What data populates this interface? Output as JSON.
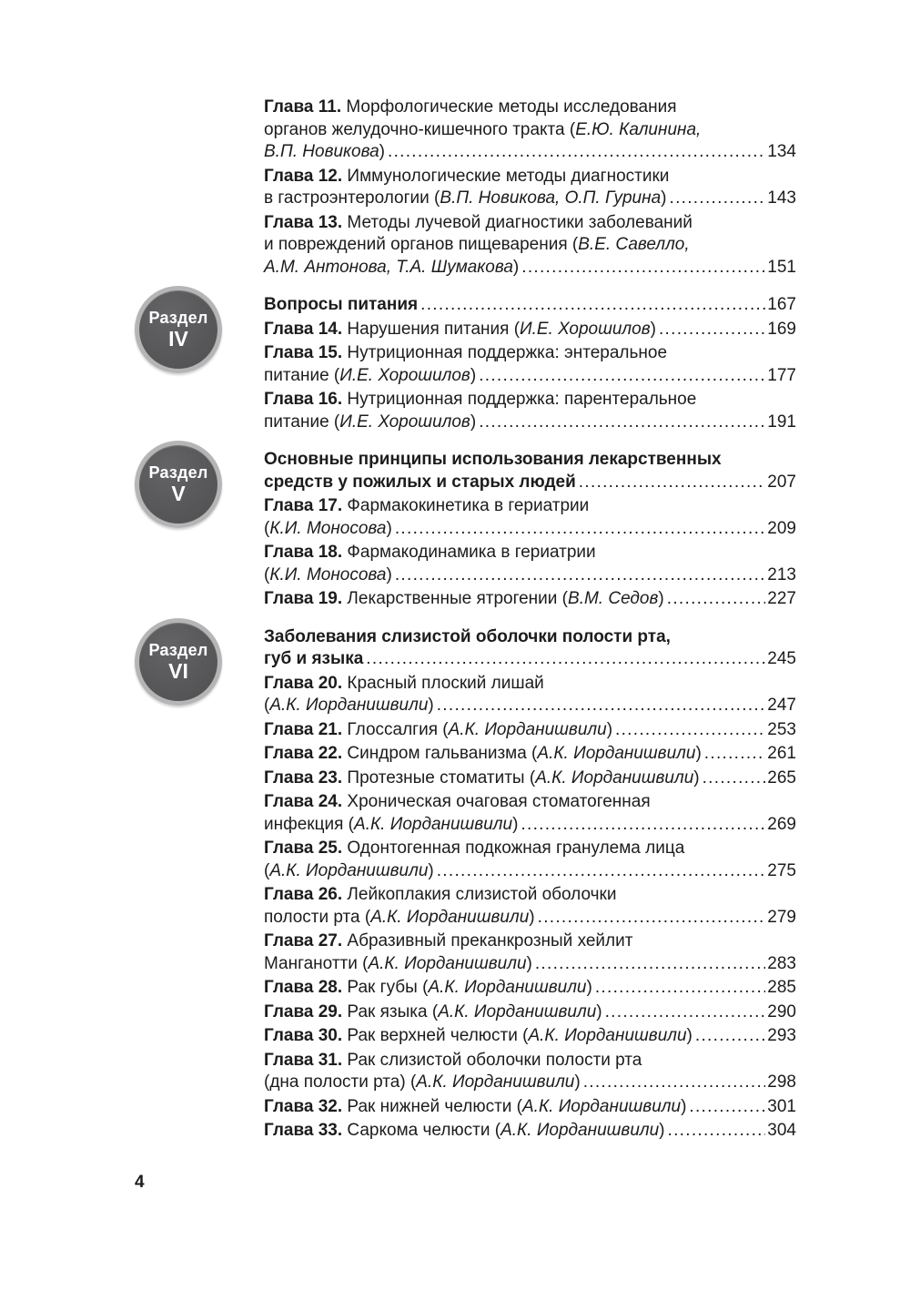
{
  "colors": {
    "text": "#1c1c1c",
    "badge_fill": "#58585a",
    "badge_ring": "#b5b5b6",
    "badge_text": "#ffffff",
    "background": "#ffffff"
  },
  "footer": {
    "page_number": "4"
  },
  "toc": {
    "entries": [
      {
        "page": "134",
        "lines": [
          {
            "segments": [
              {
                "style": "bold",
                "text": "Глава 11."
              },
              {
                "style": "regular",
                "text": " Морфологические методы исследования"
              }
            ]
          },
          {
            "segments": [
              {
                "style": "regular",
                "text": "органов желудочно-кишечного тракта ("
              },
              {
                "style": "italic",
                "text": "Е.Ю. Калинина,"
              }
            ]
          },
          {
            "segments": [
              {
                "style": "italic",
                "text": "В.П. Новикова"
              },
              {
                "style": "regular",
                "text": ")"
              }
            ]
          }
        ]
      },
      {
        "page": "143",
        "lines": [
          {
            "segments": [
              {
                "style": "bold",
                "text": "Глава 12."
              },
              {
                "style": "regular",
                "text": " Иммунологические методы диагностики"
              }
            ]
          },
          {
            "segments": [
              {
                "style": "regular",
                "text": "в гастроэнтерологии ("
              },
              {
                "style": "italic",
                "text": "В.П. Новикова, О.П. Гурина"
              },
              {
                "style": "regular",
                "text": ")"
              }
            ]
          }
        ]
      },
      {
        "page": "151",
        "lines": [
          {
            "segments": [
              {
                "style": "bold",
                "text": "Глава 13."
              },
              {
                "style": "regular",
                "text": " Методы лучевой диагностики заболеваний"
              }
            ]
          },
          {
            "segments": [
              {
                "style": "regular",
                "text": "и повреждений органов пищеварения ("
              },
              {
                "style": "italic",
                "text": "В.Е. Савелло,"
              }
            ]
          },
          {
            "segments": [
              {
                "style": "italic",
                "text": "А.М. Антонова, Т.А. Шумакова"
              },
              {
                "style": "regular",
                "text": ")"
              }
            ]
          }
        ]
      },
      {
        "page": "167",
        "section": {
          "label": "Раздел",
          "numeral": "IV"
        },
        "lines": [
          {
            "segments": [
              {
                "style": "bold",
                "text": "Вопросы питания"
              }
            ]
          }
        ]
      },
      {
        "page": "169",
        "lines": [
          {
            "segments": [
              {
                "style": "bold",
                "text": "Глава 14."
              },
              {
                "style": "regular",
                "text": " Нарушения питания ("
              },
              {
                "style": "italic",
                "text": "И.Е. Хорошилов"
              },
              {
                "style": "regular",
                "text": ")"
              }
            ]
          }
        ]
      },
      {
        "page": "177",
        "lines": [
          {
            "segments": [
              {
                "style": "bold",
                "text": "Глава 15."
              },
              {
                "style": "regular",
                "text": " Нутриционная поддержка: энтеральное"
              }
            ]
          },
          {
            "segments": [
              {
                "style": "regular",
                "text": "питание ("
              },
              {
                "style": "italic",
                "text": "И.Е. Хорошилов"
              },
              {
                "style": "regular",
                "text": ")"
              }
            ]
          }
        ]
      },
      {
        "page": "191",
        "lines": [
          {
            "segments": [
              {
                "style": "bold",
                "text": "Глава 16."
              },
              {
                "style": "regular",
                "text": " Нутриционная поддержка: парентеральное"
              }
            ]
          },
          {
            "segments": [
              {
                "style": "regular",
                "text": "питание ("
              },
              {
                "style": "italic",
                "text": "И.Е. Хорошилов"
              },
              {
                "style": "regular",
                "text": ")"
              }
            ]
          }
        ]
      },
      {
        "page": "207",
        "section": {
          "label": "Раздел",
          "numeral": "V"
        },
        "lines": [
          {
            "segments": [
              {
                "style": "bold",
                "text": "Основные принципы использования лекарственных"
              }
            ]
          },
          {
            "segments": [
              {
                "style": "bold",
                "text": "средств у пожилых и старых людей"
              }
            ]
          }
        ]
      },
      {
        "page": "209",
        "lines": [
          {
            "segments": [
              {
                "style": "bold",
                "text": "Глава 17."
              },
              {
                "style": "regular",
                "text": " Фармакокинетика в гериатрии"
              }
            ]
          },
          {
            "segments": [
              {
                "style": "regular",
                "text": "("
              },
              {
                "style": "italic",
                "text": "К.И. Моносова"
              },
              {
                "style": "regular",
                "text": ")"
              }
            ]
          }
        ]
      },
      {
        "page": "213",
        "lines": [
          {
            "segments": [
              {
                "style": "bold",
                "text": "Глава 18."
              },
              {
                "style": "regular",
                "text": " Фармакодинамика в гериатрии"
              }
            ]
          },
          {
            "segments": [
              {
                "style": "regular",
                "text": "("
              },
              {
                "style": "italic",
                "text": "К.И. Моносова"
              },
              {
                "style": "regular",
                "text": ")"
              }
            ]
          }
        ]
      },
      {
        "page": "227",
        "lines": [
          {
            "segments": [
              {
                "style": "bold",
                "text": "Глава 19."
              },
              {
                "style": "regular",
                "text": " Лекарственные ятрогении ("
              },
              {
                "style": "italic",
                "text": "В.М. Седов"
              },
              {
                "style": "regular",
                "text": ")"
              }
            ]
          }
        ]
      },
      {
        "page": "245",
        "section": {
          "label": "Раздел",
          "numeral": "VI"
        },
        "lines": [
          {
            "segments": [
              {
                "style": "bold",
                "text": "Заболевания слизистой оболочки полости рта,"
              }
            ]
          },
          {
            "segments": [
              {
                "style": "bold",
                "text": "губ и языка"
              }
            ]
          }
        ]
      },
      {
        "page": "247",
        "lines": [
          {
            "segments": [
              {
                "style": "bold",
                "text": "Глава 20."
              },
              {
                "style": "regular",
                "text": " Красный плоский лишай"
              }
            ]
          },
          {
            "segments": [
              {
                "style": "regular",
                "text": "("
              },
              {
                "style": "italic",
                "text": "А.К. Иорданишвили"
              },
              {
                "style": "regular",
                "text": ")"
              }
            ]
          }
        ]
      },
      {
        "page": "253",
        "lines": [
          {
            "segments": [
              {
                "style": "bold",
                "text": "Глава 21."
              },
              {
                "style": "regular",
                "text": " Глоссалгия ("
              },
              {
                "style": "italic",
                "text": "А.К. Иорданишвили"
              },
              {
                "style": "regular",
                "text": ")"
              }
            ]
          }
        ]
      },
      {
        "page": "261",
        "lines": [
          {
            "segments": [
              {
                "style": "bold",
                "text": "Глава 22."
              },
              {
                "style": "regular",
                "text": " Синдром гальванизма ("
              },
              {
                "style": "italic",
                "text": "А.К. Иорданишвили"
              },
              {
                "style": "regular",
                "text": ")"
              }
            ]
          }
        ]
      },
      {
        "page": "265",
        "lines": [
          {
            "segments": [
              {
                "style": "bold",
                "text": "Глава 23."
              },
              {
                "style": "regular",
                "text": " Протезные стоматиты ("
              },
              {
                "style": "italic",
                "text": "А.К. Иорданишвили"
              },
              {
                "style": "regular",
                "text": ")"
              }
            ]
          }
        ]
      },
      {
        "page": "269",
        "lines": [
          {
            "segments": [
              {
                "style": "bold",
                "text": "Глава 24."
              },
              {
                "style": "regular",
                "text": " Хроническая очаговая стоматогенная"
              }
            ]
          },
          {
            "segments": [
              {
                "style": "regular",
                "text": "инфекция ("
              },
              {
                "style": "italic",
                "text": "А.К. Иорданишвили"
              },
              {
                "style": "regular",
                "text": ")"
              }
            ]
          }
        ]
      },
      {
        "page": "275",
        "lines": [
          {
            "segments": [
              {
                "style": "bold",
                "text": "Глава 25."
              },
              {
                "style": "regular",
                "text": " Одонтогенная подкожная гранулема лица"
              }
            ]
          },
          {
            "segments": [
              {
                "style": "regular",
                "text": "("
              },
              {
                "style": "italic",
                "text": "А.К. Иорданишвили"
              },
              {
                "style": "regular",
                "text": ")"
              }
            ]
          }
        ]
      },
      {
        "page": "279",
        "lines": [
          {
            "segments": [
              {
                "style": "bold",
                "text": "Глава 26."
              },
              {
                "style": "regular",
                "text": " Лейкоплакия слизистой оболочки"
              }
            ]
          },
          {
            "segments": [
              {
                "style": "regular",
                "text": "полости рта ("
              },
              {
                "style": "italic",
                "text": "А.К. Иорданишвили"
              },
              {
                "style": "regular",
                "text": ")"
              }
            ]
          }
        ]
      },
      {
        "page": "283",
        "lines": [
          {
            "segments": [
              {
                "style": "bold",
                "text": "Глава 27."
              },
              {
                "style": "regular",
                "text": " Абразивный преканкрозный хейлит"
              }
            ]
          },
          {
            "segments": [
              {
                "style": "regular",
                "text": "Манганотти ("
              },
              {
                "style": "italic",
                "text": "А.К. Иорданишвили"
              },
              {
                "style": "regular",
                "text": ")"
              }
            ]
          }
        ]
      },
      {
        "page": "285",
        "lines": [
          {
            "segments": [
              {
                "style": "bold",
                "text": "Глава 28."
              },
              {
                "style": "regular",
                "text": " Рак губы ("
              },
              {
                "style": "italic",
                "text": "А.К. Иорданишвили"
              },
              {
                "style": "regular",
                "text": ")"
              }
            ]
          }
        ]
      },
      {
        "page": "290",
        "lines": [
          {
            "segments": [
              {
                "style": "bold",
                "text": "Глава 29."
              },
              {
                "style": "regular",
                "text": " Рак языка ("
              },
              {
                "style": "italic",
                "text": "А.К. Иорданишвили"
              },
              {
                "style": "regular",
                "text": ")"
              }
            ]
          }
        ]
      },
      {
        "page": "293",
        "lines": [
          {
            "segments": [
              {
                "style": "bold",
                "text": "Глава 30."
              },
              {
                "style": "regular",
                "text": " Рак верхней челюсти ("
              },
              {
                "style": "italic",
                "text": "А.К. Иорданишвили"
              },
              {
                "style": "regular",
                "text": ")"
              }
            ]
          }
        ]
      },
      {
        "page": "298",
        "lines": [
          {
            "segments": [
              {
                "style": "bold",
                "text": "Глава 31."
              },
              {
                "style": "regular",
                "text": " Рак слизистой оболочки полости рта"
              }
            ]
          },
          {
            "segments": [
              {
                "style": "regular",
                "text": "(дна полости рта) ("
              },
              {
                "style": "italic",
                "text": "А.К. Иорданишвили"
              },
              {
                "style": "regular",
                "text": ")"
              }
            ]
          }
        ]
      },
      {
        "page": "301",
        "lines": [
          {
            "segments": [
              {
                "style": "bold",
                "text": "Глава 32."
              },
              {
                "style": "regular",
                "text": " Рак нижней челюсти ("
              },
              {
                "style": "italic",
                "text": "А.К. Иорданишвили"
              },
              {
                "style": "regular",
                "text": ")"
              }
            ]
          }
        ]
      },
      {
        "page": "304",
        "lines": [
          {
            "segments": [
              {
                "style": "bold",
                "text": "Глава 33."
              },
              {
                "style": "regular",
                "text": " Саркома челюсти ("
              },
              {
                "style": "italic",
                "text": "А.К. Иорданишвили"
              },
              {
                "style": "regular",
                "text": ")"
              }
            ]
          }
        ]
      }
    ]
  }
}
